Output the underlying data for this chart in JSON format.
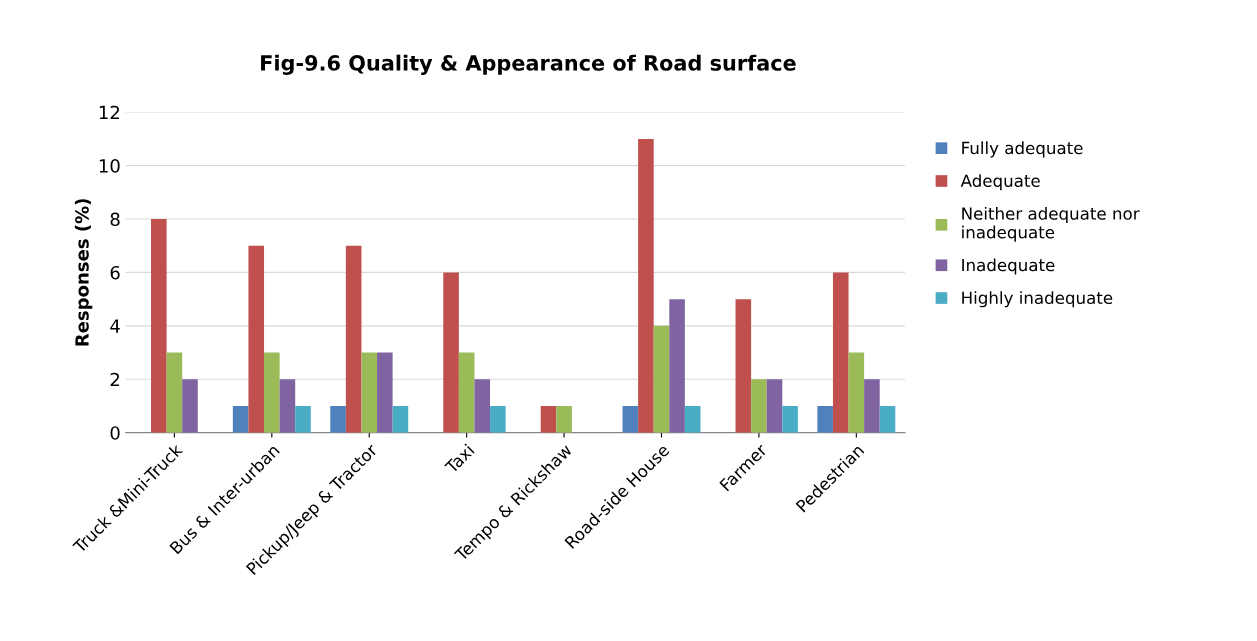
{
  "chart_data": {
    "type": "bar",
    "title": "Fig-9.6 Quality & Appearance of Road surface",
    "ylabel": "Responses (%)",
    "categories": [
      "Truck &Mini-Truck",
      "Bus & Inter-urban",
      "Pickup/Jeep & Tractor",
      "Taxi",
      "Tempo & Rickshaw",
      "Road-side House",
      "Farmer",
      "Pedestrian"
    ],
    "series": [
      {
        "name": "Fully adequate",
        "color": "#4f81bd",
        "values": [
          0,
          1,
          1,
          0,
          0,
          1,
          0,
          1
        ]
      },
      {
        "name": "Adequate",
        "color": "#c0504d",
        "values": [
          8,
          7,
          7,
          6,
          1,
          11,
          5,
          6
        ]
      },
      {
        "name": "Neither adequate nor inadequate",
        "color": "#9bbb59",
        "values": [
          3,
          3,
          3,
          3,
          1,
          4,
          2,
          3
        ]
      },
      {
        "name": "Inadequate",
        "color": "#8064a2",
        "values": [
          2,
          2,
          3,
          2,
          0,
          5,
          2,
          2
        ]
      },
      {
        "name": "Highly inadequate",
        "color": "#4bacc6",
        "values": [
          0,
          1,
          1,
          1,
          0,
          1,
          1,
          1
        ]
      }
    ],
    "ylim": [
      0,
      12
    ],
    "yticks": [
      0,
      2,
      4,
      6,
      8,
      10,
      12
    ],
    "grid": "y",
    "legend": "right"
  }
}
